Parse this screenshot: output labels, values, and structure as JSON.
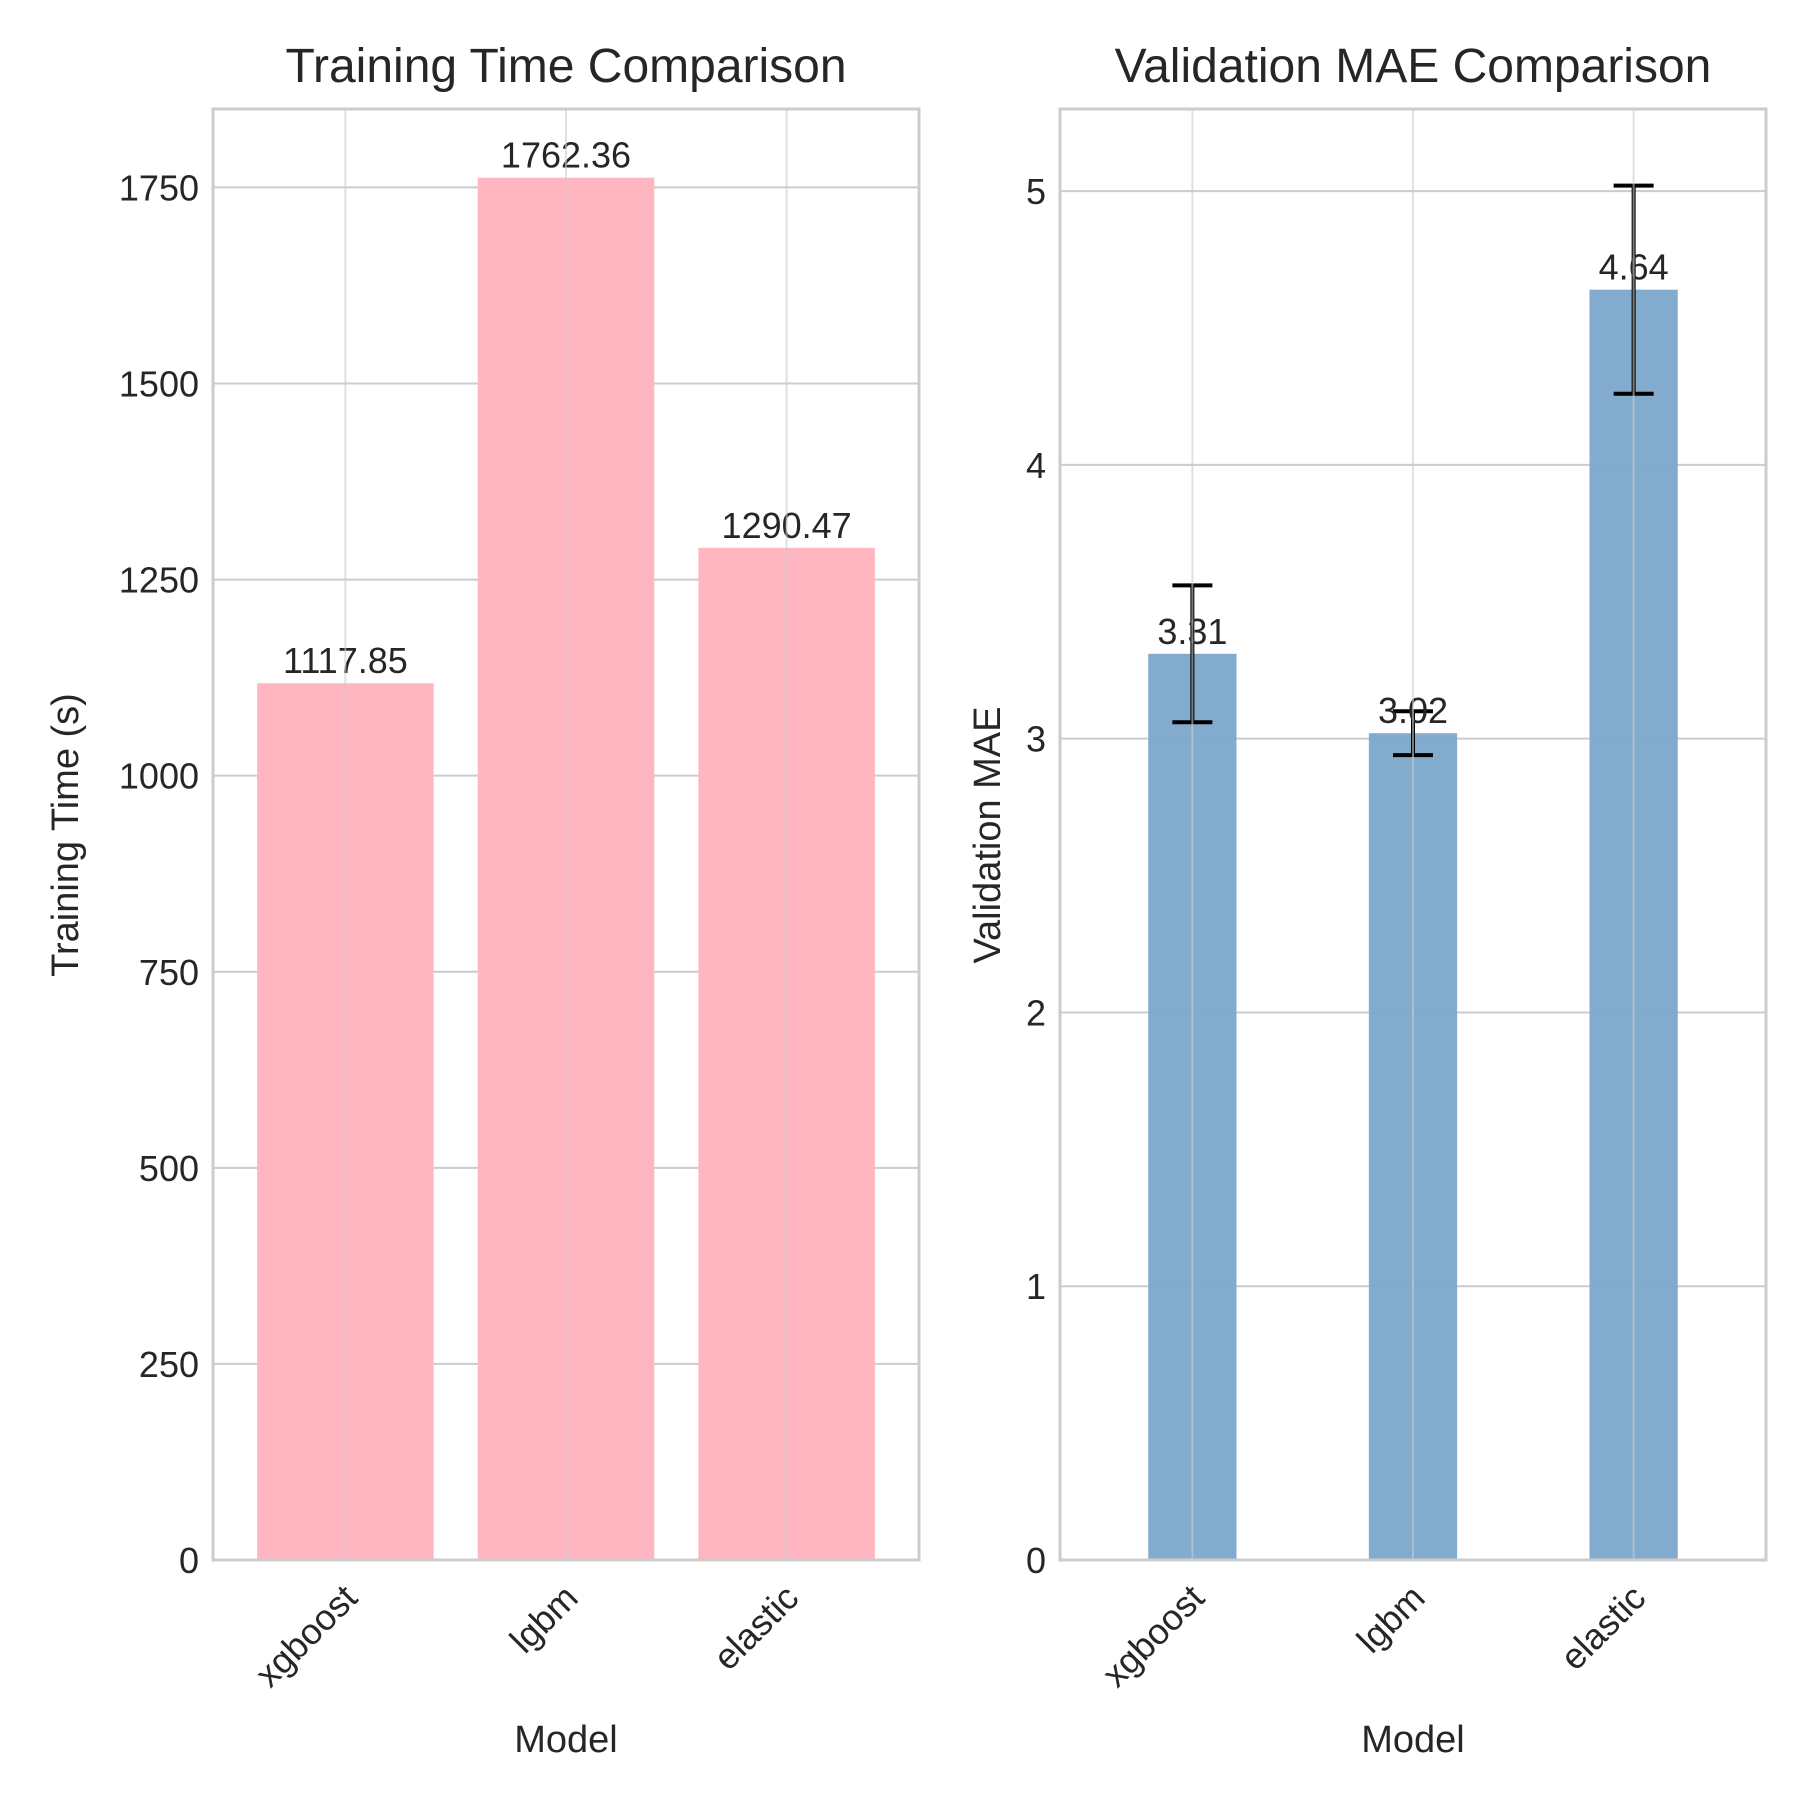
{
  "chart_data": [
    {
      "type": "bar",
      "title": "Training Time Comparison",
      "xlabel": "Model",
      "ylabel": "Training Time (s)",
      "categories": [
        "xgboost",
        "lgbm",
        "elastic"
      ],
      "values": [
        1117.85,
        1762.36,
        1290.47
      ],
      "value_labels": [
        "1117.85",
        "1762.36",
        "1290.47"
      ],
      "ylim": [
        0,
        1850
      ],
      "yticks": [
        0,
        250,
        500,
        750,
        1000,
        1250,
        1500,
        1750
      ],
      "bar_color": "#ffb6c1",
      "grid": true
    },
    {
      "type": "bar",
      "title": "Validation MAE Comparison",
      "xlabel": "Model",
      "ylabel": "Validation MAE",
      "categories": [
        "xgboost",
        "lgbm",
        "elastic"
      ],
      "values": [
        3.31,
        3.02,
        4.64
      ],
      "value_labels": [
        "3.31",
        "3.02",
        "4.64"
      ],
      "error": [
        0.25,
        0.08,
        0.38
      ],
      "ylim": [
        0,
        5.3
      ],
      "yticks": [
        0,
        1,
        2,
        3,
        4,
        5
      ],
      "bar_color": "#7ba6cb",
      "error_color": "#000000",
      "grid": true
    }
  ]
}
